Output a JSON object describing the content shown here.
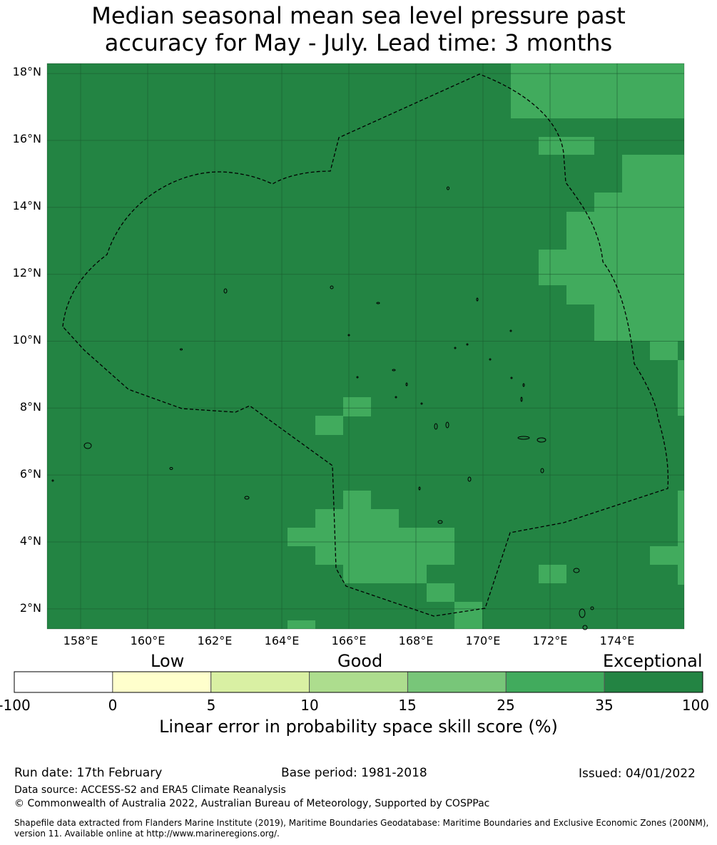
{
  "title": {
    "line1": "Median seasonal mean sea level pressure past",
    "line2": "accuracy for May - July. Lead time: 3 months"
  },
  "map": {
    "lon_range": [
      157,
      176
    ],
    "lat_range": [
      1.4,
      18.3
    ],
    "lat_labels": [
      "18°N",
      "16°N",
      "14°N",
      "12°N",
      "10°N",
      "8°N",
      "6°N",
      "4°N",
      "2°N"
    ],
    "lat_values": [
      18,
      16,
      14,
      12,
      10,
      8,
      6,
      4,
      2
    ],
    "lon_labels": [
      "158°E",
      "160°E",
      "162°E",
      "164°E",
      "166°E",
      "168°E",
      "170°E",
      "172°E",
      "174°E"
    ],
    "lon_values": [
      158,
      160,
      162,
      164,
      166,
      168,
      170,
      172,
      174
    ],
    "colors": {
      "exceptional": "#238443",
      "very_good": "#41ab5d",
      "grid": "#1a5c30"
    }
  },
  "legend": {
    "categories": [
      "Low",
      "Good",
      "Exceptional"
    ],
    "ticks": [
      "-100",
      "0",
      "5",
      "10",
      "15",
      "25",
      "35",
      "100"
    ],
    "colors": [
      "#ffffff",
      "#ffffcc",
      "#d9f0a3",
      "#addd8e",
      "#78c679",
      "#41ab5d",
      "#238443"
    ],
    "title": "Linear error in probability space skill score (%)"
  },
  "footer": {
    "run_date": "Run date: 17th February",
    "base_period": "Base period: 1981-2018",
    "issued": "Issued: 04/01/2022",
    "data_source": "Data source: ACCESS-S2 and ERA5 Climate Reanalysis",
    "copyright": "© Commonwealth of Australia 2022, Australian Bureau of Meteorology, Supported by COSPPac",
    "shapefile1": "Shapefile data extracted from Flanders Marine Institute (2019), Maritime Boundaries Geodatabase: Maritime Boundaries and Exclusive Economic Zones (200NM),",
    "shapefile2": "version 11. Available online at http://www.marineregions.org/."
  }
}
